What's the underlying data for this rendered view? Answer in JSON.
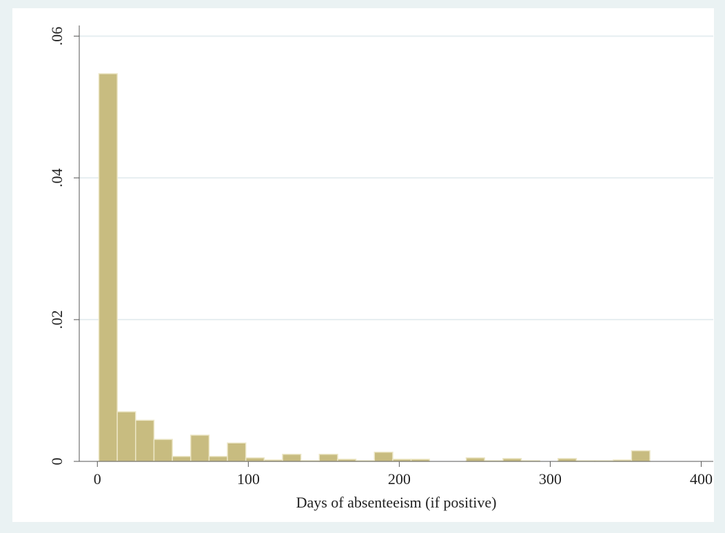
{
  "chart_data": {
    "type": "histogram",
    "xlabel": "Days of absenteeism (if positive)",
    "bins": [
      1,
      13.17,
      25.33,
      37.5,
      49.67,
      61.83,
      74,
      86.17,
      98.33,
      110.5,
      122.67,
      134.83,
      147,
      159.17,
      171.33,
      183.5,
      195.67,
      207.83,
      220,
      232.17,
      244.33,
      256.5,
      268.67,
      280.83,
      293,
      305.17,
      317.33,
      329.5,
      341.67,
      353.83,
      366
    ],
    "values": [
      0.0547,
      0.007,
      0.0058,
      0.0031,
      0.0007,
      0.0037,
      0.0007,
      0.0026,
      0.0005,
      0.0002,
      0.001,
      0.0001,
      0.001,
      0.0003,
      0.0001,
      0.0013,
      0.0003,
      0.0003,
      0,
      0,
      0.0005,
      0.0001,
      0.0004,
      0.0001,
      0,
      0.0004,
      0.0001,
      0.0001,
      0.0002,
      0.0015
    ],
    "color": "#c8bc80",
    "xlim": [
      -12,
      408
    ],
    "xticks": [
      0,
      100,
      200,
      300,
      400
    ],
    "ylim": [
      0,
      0.0615
    ],
    "yticks": [
      0,
      {
        "value": 0.02,
        "label": ".02"
      },
      {
        "value": 0.04,
        "label": ".04"
      },
      {
        "value": 0.06,
        "label": ".06"
      }
    ],
    "grid": true
  }
}
